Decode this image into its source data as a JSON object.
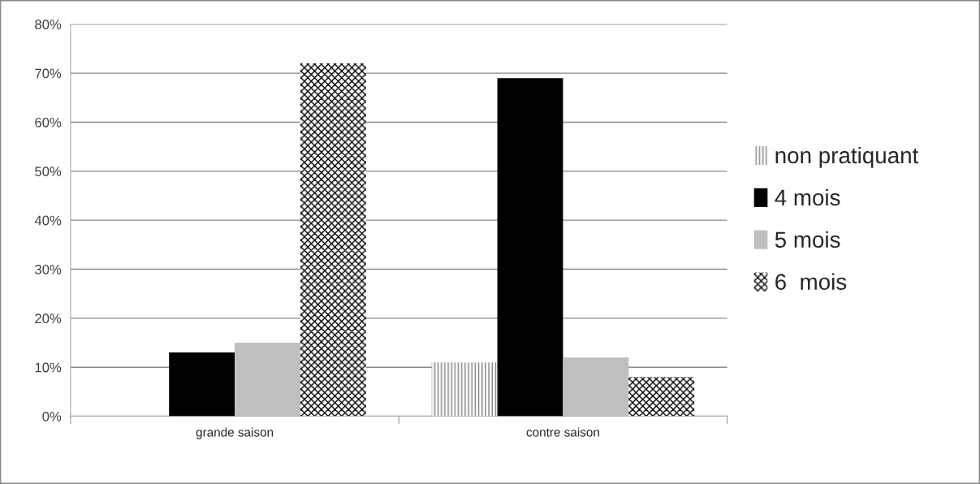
{
  "chart_data": {
    "type": "bar",
    "categories": [
      "grande saison",
      "contre saison"
    ],
    "series": [
      {
        "name": "non pratiquant",
        "color": "#808080",
        "values": [
          0,
          11
        ]
      },
      {
        "name": "4 mois",
        "color": "#000000",
        "values": [
          13,
          69
        ]
      },
      {
        "name": "5 mois",
        "color": "#bfbfbf",
        "values": [
          15,
          12
        ]
      },
      {
        "name": "6  mois",
        "color": "#000000",
        "values": [
          72,
          8
        ]
      }
    ],
    "ylim": [
      0,
      80
    ],
    "yticks": [
      {
        "value": 0,
        "label": "0%"
      },
      {
        "value": 10,
        "label": "10%"
      },
      {
        "value": 20,
        "label": "20%"
      },
      {
        "value": 30,
        "label": "30%"
      },
      {
        "value": 40,
        "label": "40%"
      },
      {
        "value": 50,
        "label": "50%"
      },
      {
        "value": 60,
        "label": "60%"
      },
      {
        "value": 70,
        "label": "70%"
      },
      {
        "value": 80,
        "label": "80%"
      }
    ],
    "grid": "y",
    "legend": "right"
  }
}
